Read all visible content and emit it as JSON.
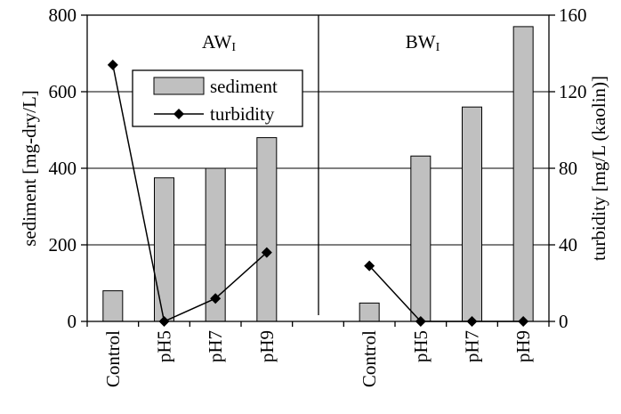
{
  "chart_data": {
    "type": "bar",
    "categories": [
      "Control",
      "pH5",
      "pH7",
      "pH9",
      "",
      "Control",
      "pH5",
      "pH7",
      "pH9"
    ],
    "panels": [
      {
        "label": "AW",
        "subscript": "I"
      },
      {
        "label": "BW",
        "subscript": "I"
      }
    ],
    "series": [
      {
        "name": "sediment",
        "kind": "bar",
        "axis": "left",
        "values": [
          80,
          375,
          400,
          480,
          null,
          48,
          432,
          560,
          770
        ],
        "color": "#c0c0c0"
      },
      {
        "name": "turbidity",
        "kind": "line",
        "marker": "diamond",
        "axis": "right",
        "segments": [
          {
            "indices": [
              0,
              1,
              2,
              3
            ],
            "values": [
              134,
              0,
              12,
              36
            ]
          },
          {
            "indices": [
              5,
              6,
              7,
              8
            ],
            "values": [
              29,
              0,
              0,
              0
            ]
          }
        ],
        "color": "#000000"
      }
    ],
    "ylabel_left": "sediment [mg-dry/L]",
    "ylabel_right": "turbidity [mg/L (kaolin)]",
    "ylim_left": [
      0,
      800
    ],
    "yticks_left": [
      0,
      200,
      400,
      600,
      800
    ],
    "ylim_right": [
      0,
      160
    ],
    "yticks_right": [
      0,
      40,
      80,
      120,
      160
    ],
    "grid": true,
    "legend_position": "top-left-inside"
  }
}
